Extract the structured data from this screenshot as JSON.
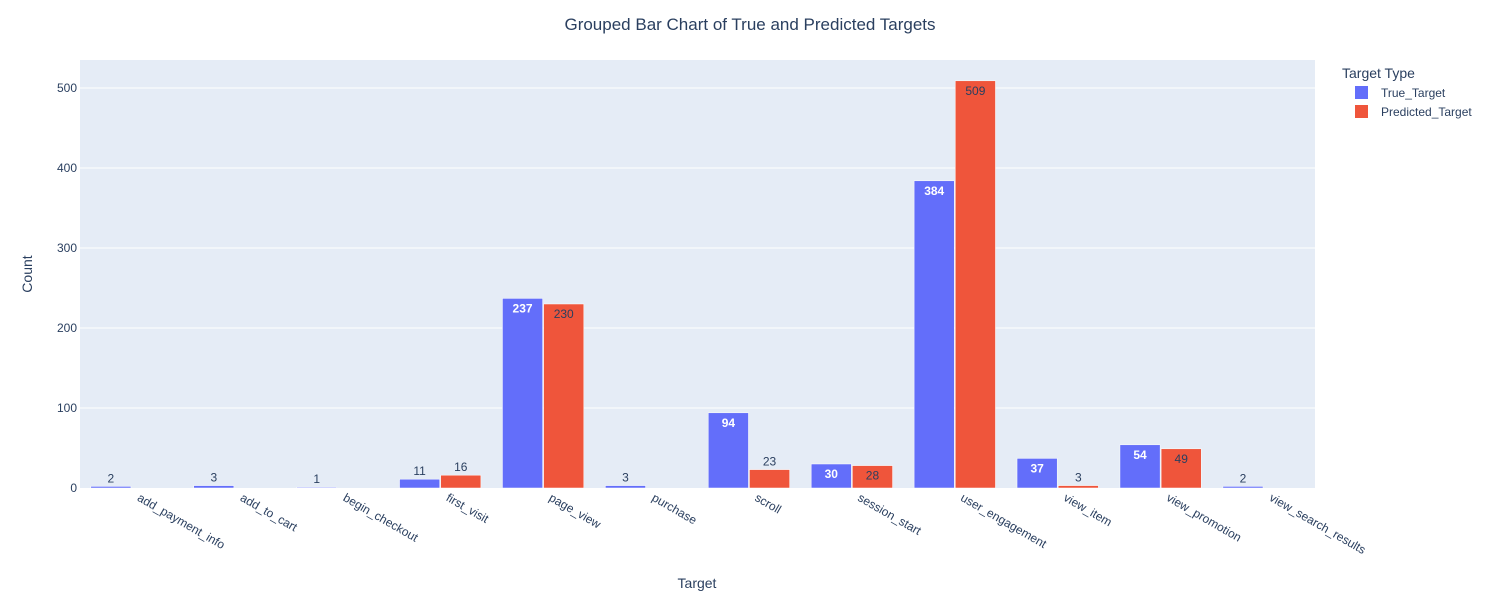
{
  "chart_data": {
    "type": "bar",
    "title": "Grouped Bar Chart of True and Predicted Targets",
    "xlabel": "Target",
    "ylabel": "Count",
    "ylim": [
      0,
      535
    ],
    "yticks": [
      0,
      100,
      200,
      300,
      400,
      500
    ],
    "grid": true,
    "legend": {
      "title": "Target Type",
      "placement": "top-right"
    },
    "categories": [
      "add_payment_info",
      "add_to_cart",
      "begin_checkout",
      "first_visit",
      "page_view",
      "purchase",
      "scroll",
      "session_start",
      "user_engagement",
      "view_item",
      "view_promotion",
      "view_search_results"
    ],
    "series": [
      {
        "name": "True_Target",
        "color": "#636efa",
        "values": [
          2,
          3,
          1,
          11,
          237,
          3,
          94,
          30,
          384,
          37,
          54,
          2
        ]
      },
      {
        "name": "Predicted_Target",
        "color": "#ef553b",
        "values": [
          null,
          null,
          null,
          16,
          230,
          null,
          23,
          28,
          509,
          3,
          49,
          null
        ]
      }
    ]
  }
}
